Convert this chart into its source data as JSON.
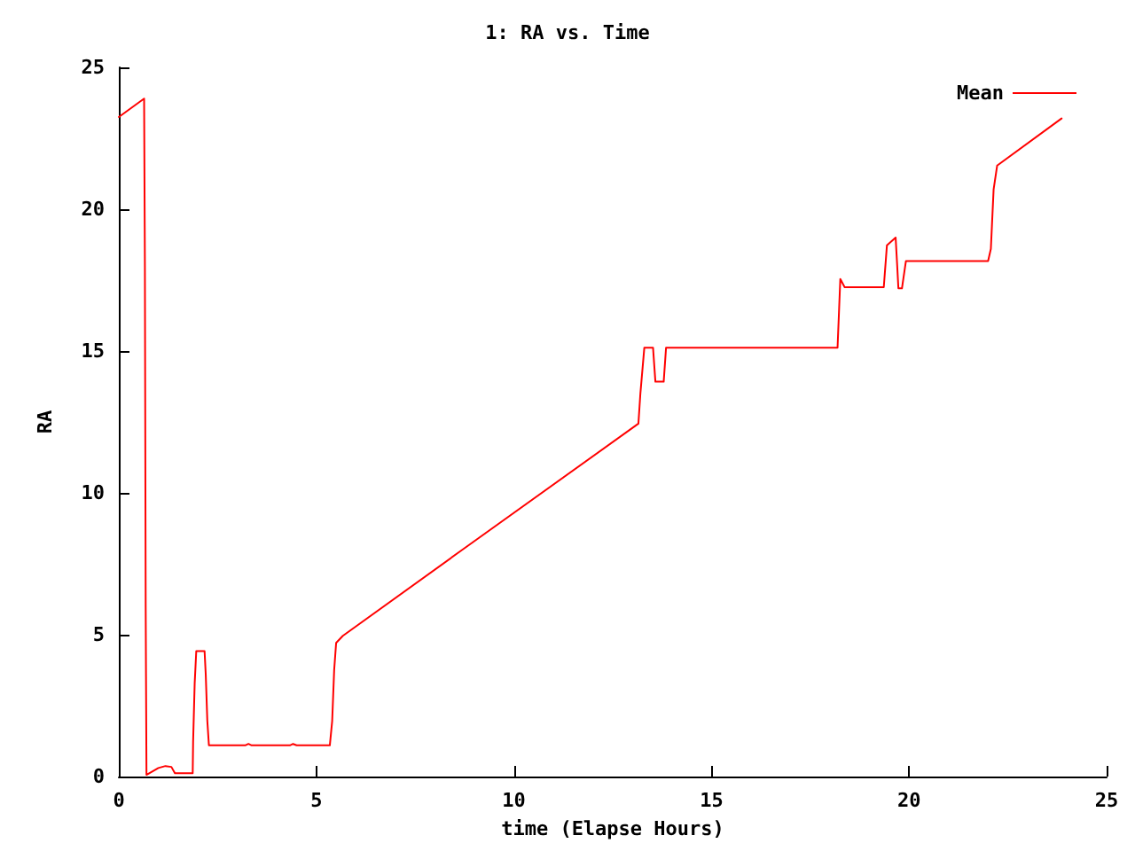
{
  "chart_data": {
    "type": "line",
    "title": "1: RA vs. Time",
    "xlabel": "time (Elapse Hours)",
    "ylabel": "RA",
    "xlim": [
      0,
      25
    ],
    "xticks": [
      0,
      5,
      10,
      15,
      20,
      25
    ],
    "ylim": [
      0,
      25
    ],
    "yticks": [
      0,
      5,
      10,
      15,
      20,
      25
    ],
    "grid": false,
    "legend": "top right",
    "marker": "none",
    "line_style": "solid",
    "series": [
      {
        "name": "Mean",
        "color": "#ff0000",
        "x": [
          0,
          0.64,
          0.66,
          0.68,
          0.7,
          0.72,
          1.0,
          1.18,
          1.33,
          1.42,
          1.87,
          1.88,
          1.92,
          1.96,
          2.17,
          2.2,
          2.24,
          2.28,
          3.2,
          3.28,
          3.36,
          4.33,
          4.41,
          4.5,
          5.34,
          5.4,
          5.45,
          5.5,
          5.67,
          8.66,
          13.15,
          13.2,
          13.3,
          13.52,
          13.58,
          13.79,
          13.85,
          18.19,
          18.23,
          18.26,
          18.37,
          19.36,
          19.44,
          19.66,
          19.7,
          19.73,
          19.82,
          19.92,
          22.0,
          22.07,
          22.14,
          22.23,
          23.86
        ],
        "values": [
          23.25,
          23.9,
          17.96,
          5.96,
          0.06,
          0.06,
          0.3,
          0.37,
          0.34,
          0.12,
          0.12,
          1.2,
          3.29,
          4.42,
          4.42,
          3.6,
          1.96,
          1.1,
          1.1,
          1.15,
          1.1,
          1.1,
          1.15,
          1.1,
          1.1,
          1.96,
          3.75,
          4.71,
          4.96,
          7.96,
          12.44,
          13.5,
          15.12,
          15.12,
          13.92,
          13.92,
          15.12,
          15.12,
          16.5,
          17.54,
          17.25,
          17.25,
          18.73,
          19.0,
          18.0,
          17.21,
          17.21,
          18.17,
          18.17,
          18.6,
          20.7,
          21.54,
          23.2
        ]
      }
    ]
  }
}
